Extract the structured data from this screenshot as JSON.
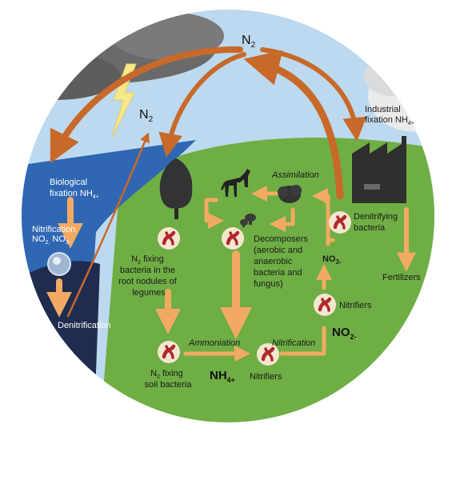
{
  "colors": {
    "sky": "#bcd9ef",
    "ground": "#6fae44",
    "water": "#2f67b3",
    "deep_water": "#1f2c4f",
    "arrow_brown": "#c8692a",
    "arrow_light": "#f2aa62",
    "microbe_bg": "#f3e6cf",
    "microbe": "#b0272c",
    "factory": "#2f2f2f"
  },
  "labels": {
    "n2_top": "N",
    "n2_top_sub": "2",
    "n2_left": "N",
    "n2_left_sub": "2",
    "industrial_line1": "Industrial",
    "industrial_line2": "fixation NH",
    "industrial_sub": "4+",
    "biological_line1": "Biological",
    "biological_line2": "fixation NH",
    "biological_sub": "4+",
    "nitrification_left_line1": "Nitrification",
    "nitrification_left_line2": "NO",
    "nitrification_left_sub1": "2,",
    "nitrification_left_mid": " NO",
    "nitrification_left_sub2": "3-",
    "denitrification_left": "Denitrification",
    "assimilation": "Assimilation",
    "denitrifying_line1": "Denitrifying",
    "denitrifying_line2": "bacteria",
    "decomposers_lines": [
      "Decomposers",
      "(aerobic and",
      "anaerobic",
      "bacteria and",
      "fungus)"
    ],
    "no3_main": "NO",
    "no3_sub": "3-",
    "fertilizers": "Fertilizers",
    "nfix_nodules_lines": [
      "fixing",
      "bacteria in the",
      "root nodules of",
      "legumes"
    ],
    "nfix_nodules_n": "N",
    "nfix_nodules_sub": "2",
    "nitrifiers_right": "Nitrifiers",
    "no2_main": "NO",
    "no2_sub": "2-",
    "ammoniation": "Ammoniation",
    "nitrification_mid": "Nitrification",
    "nfix_soil_n": "N",
    "nfix_soil_sub": "2",
    "nfix_soil_line1": "fixing",
    "nfix_soil_line2": "soil bacteria",
    "nh4_main": "NH",
    "nh4_sub": "4+",
    "nitrifiers_bottom": "Nitrifiers"
  },
  "icons": {
    "lightning": "lightning-bolt-icon",
    "cloud": "storm-cloud-icon",
    "tree": "tree-icon",
    "horse": "horse-icon",
    "shrub": "shrub-icon",
    "mushroom": "mushroom-icon",
    "factory": "factory-icon",
    "water_drop": "water-drop-icon",
    "microbe": "bacteria-icon"
  }
}
